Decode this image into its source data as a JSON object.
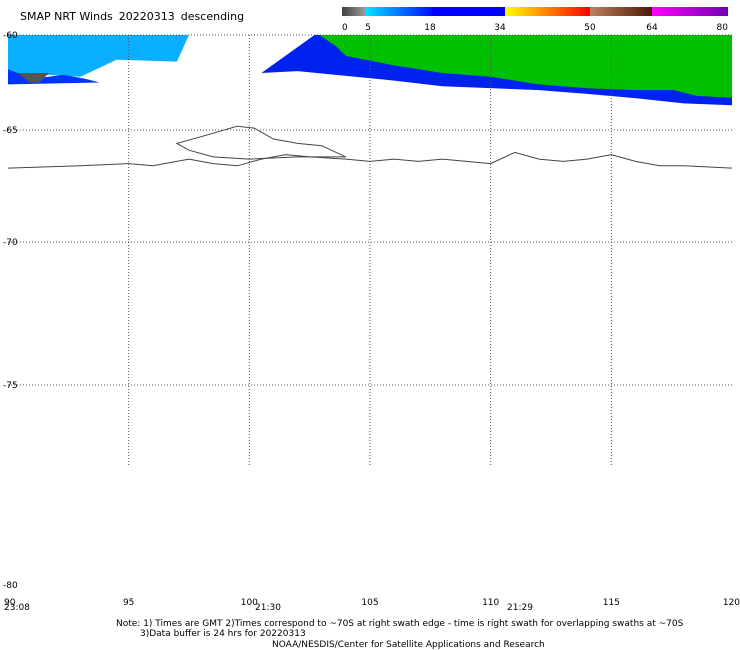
{
  "title": {
    "product": "SMAP NRT Winds",
    "date": "20220313",
    "pass": "descending"
  },
  "colorbar": {
    "labels": [
      "0",
      "5",
      "18",
      "34",
      "50",
      "64",
      "80"
    ],
    "colors": [
      "#555555",
      "#0ab0ff",
      "#0000ff",
      "#00c000",
      "#ffff00",
      "#ff9000",
      "#ff0000",
      "#c00000",
      "#b07850",
      "#6b2a10",
      "#ff00ff",
      "#8000c0"
    ]
  },
  "chart_data": {
    "type": "map",
    "title": "SMAP NRT Winds  20220313 descending",
    "xlim": [
      90,
      120
    ],
    "ylim": [
      -80,
      -60
    ],
    "x_ticks": [
      "90",
      "95",
      "100",
      "105",
      "110",
      "115",
      "120"
    ],
    "y_ticks": [
      "-60",
      "-65",
      "-70",
      "-75",
      "-80"
    ],
    "swath_times": [
      {
        "label": "23:08",
        "lon": 90
      },
      {
        "label": "21:30",
        "lon": 100
      },
      {
        "label": "21:29",
        "lon": 110
      }
    ],
    "swaths": [
      {
        "name": "light-blue band",
        "color": "#0ab0ff",
        "polygon": [
          [
            90,
            -60
          ],
          [
            97.5,
            -60
          ],
          [
            97,
            -61.4
          ],
          [
            94.5,
            -61.3
          ],
          [
            93,
            -62.2
          ],
          [
            91.7,
            -62.1
          ],
          [
            90,
            -62.2
          ]
        ]
      },
      {
        "name": "blue band",
        "color": "#0033ff",
        "polygon": [
          [
            90,
            -61.8
          ],
          [
            91,
            -62.3
          ],
          [
            92.3,
            -62.1
          ],
          [
            93.2,
            -62.3
          ],
          [
            93.8,
            -62.5
          ],
          [
            90,
            -62.6
          ]
        ]
      },
      {
        "name": "gray patch",
        "color": "#555555",
        "polygon": [
          [
            90.4,
            -62.0
          ],
          [
            91.7,
            -62.0
          ],
          [
            91.3,
            -62.5
          ],
          [
            90.9,
            -62.5
          ]
        ]
      },
      {
        "name": "blue coast band",
        "color": "#0022ee",
        "polygon": [
          [
            102.7,
            -60
          ],
          [
            120,
            -60
          ],
          [
            120,
            -63.7
          ],
          [
            118,
            -63.6
          ],
          [
            115.8,
            -63.3
          ],
          [
            114,
            -63.1
          ],
          [
            112,
            -62.9
          ],
          [
            108,
            -62.7
          ],
          [
            106,
            -62.4
          ],
          [
            102,
            -61.9
          ],
          [
            100.5,
            -62.0
          ],
          [
            102.7,
            -60
          ]
        ]
      },
      {
        "name": "green band",
        "color": "#00c000",
        "polygon": [
          [
            102.9,
            -60
          ],
          [
            120,
            -60
          ],
          [
            120,
            -63.3
          ],
          [
            118.5,
            -63.2
          ],
          [
            117.6,
            -62.9
          ],
          [
            116,
            -62.9
          ],
          [
            114,
            -62.8
          ],
          [
            112,
            -62.6
          ],
          [
            110,
            -62.2
          ],
          [
            108,
            -62.0
          ],
          [
            106,
            -61.6
          ],
          [
            104,
            -61.1
          ],
          [
            103.6,
            -60.6
          ]
        ]
      }
    ],
    "coastline": [
      [
        90,
        -66.7
      ],
      [
        93,
        -66.6
      ],
      [
        95,
        -66.5
      ],
      [
        96,
        -66.6
      ],
      [
        97.5,
        -66.3
      ],
      [
        98.5,
        -66.5
      ],
      [
        99.5,
        -66.6
      ],
      [
        100.5,
        -66.3
      ],
      [
        101.5,
        -66.1
      ],
      [
        102.5,
        -66.2
      ],
      [
        104,
        -66.3
      ],
      [
        105,
        -66.4
      ],
      [
        106,
        -66.3
      ],
      [
        107,
        -66.4
      ],
      [
        108,
        -66.3
      ],
      [
        109,
        -66.4
      ],
      [
        110,
        -66.5
      ],
      [
        111,
        -66.0
      ],
      [
        112,
        -66.3
      ],
      [
        113,
        -66.4
      ],
      [
        114,
        -66.3
      ],
      [
        115,
        -66.1
      ],
      [
        116,
        -66.4
      ],
      [
        117,
        -66.6
      ],
      [
        118,
        -66.6
      ],
      [
        120,
        -66.7
      ]
    ]
  },
  "notes": {
    "line1": "Note: 1) Times are GMT 2)Times correspond to ~70S at right swath edge - time is right swath for overlapping swaths at ~70S",
    "line2": "3)Data buffer is 24 hrs for 20220313",
    "line3": "NOAA/NESDIS/Center for Satellite Applications and Research"
  }
}
